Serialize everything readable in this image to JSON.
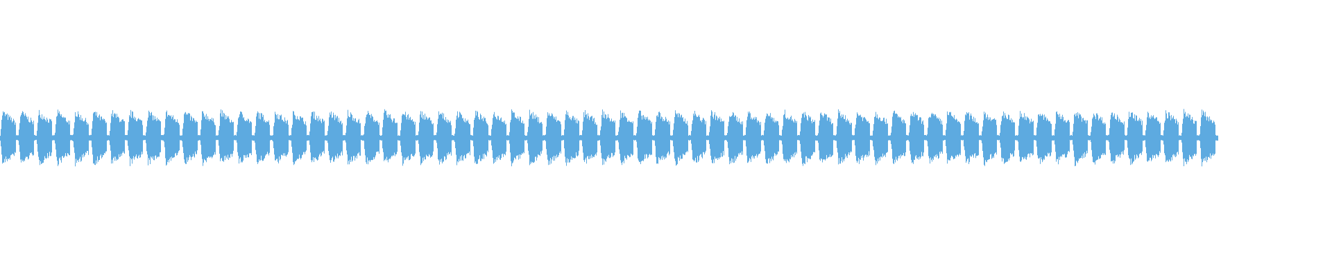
{
  "waveform": {
    "color": "#5DAAE0",
    "background": "#FFFFFF",
    "burst_count": 67
  }
}
